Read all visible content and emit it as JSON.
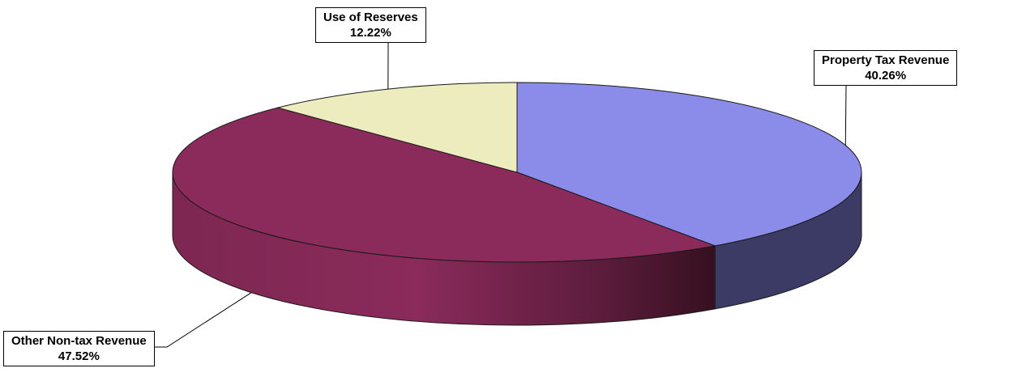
{
  "chart_data": {
    "type": "pie",
    "slices": [
      {
        "label": "Property Tax Revenue",
        "value": 40.26,
        "value_label": "40.26%",
        "color": "#8b8bea",
        "side_color": "#3b3b66"
      },
      {
        "label": "Other Non-tax Revenue",
        "value": 47.52,
        "value_label": "47.52%",
        "color": "#8b2b5b",
        "side_color": "#8b2b5b"
      },
      {
        "label": "Use of Reserves",
        "value": 12.22,
        "value_label": "12.22%",
        "color": "#ececbe",
        "side_color": "#a6a684"
      }
    ],
    "style": "3d",
    "legend": "none"
  }
}
